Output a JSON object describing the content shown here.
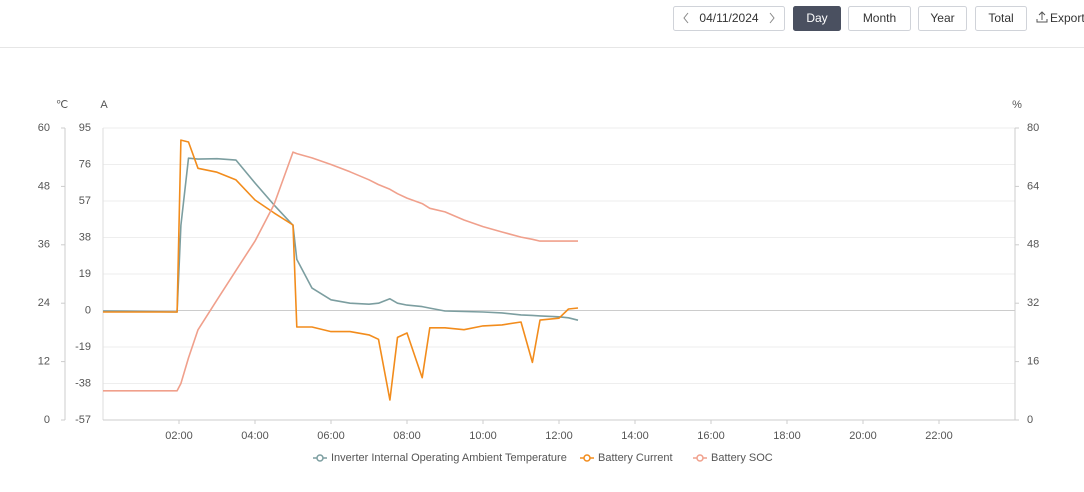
{
  "controls": {
    "date": "04/11/2024",
    "buttons": [
      "Day",
      "Month",
      "Year",
      "Total"
    ],
    "export": "Export"
  },
  "chart_data": {
    "type": "line",
    "ylabel": "℃",
    "y3label": "A",
    "y2label": "%",
    "x": [
      0,
      1,
      1.95,
      2.05,
      2.25,
      2.5,
      3,
      3.5,
      4,
      4.5,
      5,
      5.1,
      5.5,
      6,
      6.5,
      7,
      7.25,
      7.55,
      7.75,
      8,
      8.4,
      8.6,
      9,
      9.5,
      10,
      10.5,
      11,
      11.3,
      11.5,
      12,
      12.25,
      12.5
    ],
    "xlim": [
      0,
      24
    ],
    "xticks": [
      {
        "value": 2,
        "label": "02:00"
      },
      {
        "value": 4,
        "label": "04:00"
      },
      {
        "value": 6,
        "label": "06:00"
      },
      {
        "value": 8,
        "label": "08:00"
      },
      {
        "value": 10,
        "label": "10:00"
      },
      {
        "value": 12,
        "label": "12:00"
      },
      {
        "value": 14,
        "label": "14:00"
      },
      {
        "value": 16,
        "label": "16:00"
      },
      {
        "value": 18,
        "label": "18:00"
      },
      {
        "value": 20,
        "label": "20:00"
      },
      {
        "value": 22,
        "label": "22:00"
      }
    ],
    "ylim": [
      0,
      60
    ],
    "yticks": [
      0,
      12,
      24,
      36,
      48,
      60
    ],
    "y3lim": [
      -57,
      95
    ],
    "y3ticks": [
      -57,
      -38,
      -19,
      0,
      19,
      38,
      57,
      76,
      95
    ],
    "y2lim": [
      0,
      80
    ],
    "y2ticks": [
      0,
      16,
      32,
      48,
      64,
      80
    ],
    "grid": true,
    "series": [
      {
        "name": "Inverter Internal Operating Ambient Temperature",
        "color": "#7c9ea0",
        "axis": "y",
        "values": [
          22.4,
          22.3,
          22.2,
          40,
          53.8,
          53.6,
          53.7,
          53.4,
          48.7,
          44.2,
          40,
          33,
          27.1,
          24.7,
          24,
          23.8,
          24,
          24.9,
          24,
          23.6,
          23.3,
          23,
          22.4,
          22.3,
          22.2,
          22,
          21.6,
          21.5,
          21.4,
          21.2,
          21,
          20.5
        ]
      },
      {
        "name": "Battery Current",
        "color": "#f28c1c",
        "axis": "y3",
        "values": [
          -0.8,
          -0.8,
          -0.8,
          88.7,
          87.7,
          74,
          72,
          68,
          57.5,
          50.8,
          44.5,
          -8.6,
          -8.6,
          -11,
          -11,
          -12.7,
          -15,
          -46.6,
          -14,
          -11.7,
          -35,
          -9,
          -9,
          -10,
          -8,
          -7.5,
          -6,
          -27,
          -5,
          -4,
          0.8,
          1.3
        ]
      },
      {
        "name": "Battery SOC",
        "color": "#f0a08c",
        "axis": "y2",
        "values": [
          8,
          8,
          8,
          10,
          17,
          24.7,
          32.9,
          41,
          49,
          59,
          73.4,
          73,
          71.8,
          70,
          68,
          65.8,
          64.5,
          63.2,
          62,
          60.8,
          59.3,
          58,
          57,
          54.8,
          53,
          51.5,
          50.1,
          49.5,
          49,
          49,
          49,
          49
        ]
      }
    ]
  }
}
